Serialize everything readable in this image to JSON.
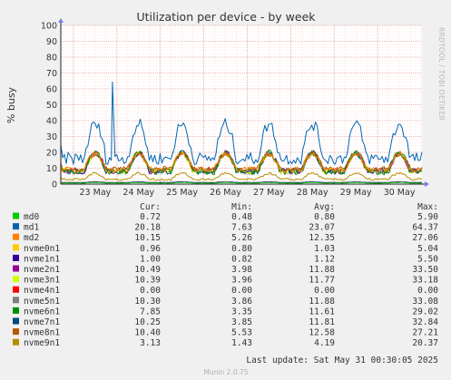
{
  "chart_data": {
    "type": "line",
    "title": "Utilization per device - by week",
    "ylabel": "% busy",
    "xlabel": "",
    "ylim": [
      0,
      100
    ],
    "yticks": [
      0,
      10,
      20,
      30,
      40,
      50,
      60,
      70,
      80,
      90,
      100
    ],
    "xlim": [
      "2025-05-22 17:00",
      "2025-05-31 00:30"
    ],
    "xticks": [
      {
        "label": "23 May",
        "t": "2025-05-23 00:00"
      },
      {
        "label": "24 May",
        "t": "2025-05-24 00:00"
      },
      {
        "label": "25 May",
        "t": "2025-05-25 00:00"
      },
      {
        "label": "26 May",
        "t": "2025-05-26 00:00"
      },
      {
        "label": "27 May",
        "t": "2025-05-27 00:00"
      },
      {
        "label": "28 May",
        "t": "2025-05-28 00:00"
      },
      {
        "label": "29 May",
        "t": "2025-05-29 00:00"
      },
      {
        "label": "30 May",
        "t": "2025-05-30 00:00"
      }
    ],
    "grid": true,
    "legend_headers": {
      "cur": "Cur:",
      "min": "Min:",
      "avg": "Avg:",
      "max": "Max:"
    },
    "series": [
      {
        "name": "md0",
        "color": "#00cc00",
        "cur": "0.72",
        "min": "0.48",
        "avg": "0.80",
        "max": "5.90"
      },
      {
        "name": "md1",
        "color": "#0066b3",
        "cur": "20.18",
        "min": "7.63",
        "avg": "23.07",
        "max": "64.37"
      },
      {
        "name": "md2",
        "color": "#ff8000",
        "cur": "10.15",
        "min": "5.26",
        "avg": "12.35",
        "max": "27.06"
      },
      {
        "name": "nvme0n1",
        "color": "#ffcc00",
        "cur": "0.96",
        "min": "0.80",
        "avg": "1.03",
        "max": "5.04"
      },
      {
        "name": "nvme1n1",
        "color": "#330099",
        "cur": "1.00",
        "min": "0.82",
        "avg": "1.12",
        "max": "5.50"
      },
      {
        "name": "nvme2n1",
        "color": "#990099",
        "cur": "10.49",
        "min": "3.98",
        "avg": "11.88",
        "max": "33.50"
      },
      {
        "name": "nvme3n1",
        "color": "#ccff00",
        "cur": "10.39",
        "min": "3.96",
        "avg": "11.77",
        "max": "33.18"
      },
      {
        "name": "nvme4n1",
        "color": "#ff0000",
        "cur": "0.00",
        "min": "0.00",
        "avg": "0.00",
        "max": "0.00"
      },
      {
        "name": "nvme5n1",
        "color": "#808080",
        "cur": "10.30",
        "min": "3.86",
        "avg": "11.88",
        "max": "33.08"
      },
      {
        "name": "nvme6n1",
        "color": "#008f00",
        "cur": "7.85",
        "min": "3.35",
        "avg": "11.61",
        "max": "29.02"
      },
      {
        "name": "nvme7n1",
        "color": "#00487d",
        "cur": "10.25",
        "min": "3.85",
        "avg": "11.81",
        "max": "32.84"
      },
      {
        "name": "nvme8n1",
        "color": "#b35a00",
        "cur": "10.40",
        "min": "5.53",
        "avg": "12.58",
        "max": "27.21"
      },
      {
        "name": "nvme9n1",
        "color": "#b38f00",
        "cur": "3.13",
        "min": "1.43",
        "avg": "4.19",
        "max": "20.37"
      }
    ]
  },
  "last_update": "Last update: Sat May 31 00:30:05 2025",
  "watermark": "RRDTOOL / TOBI OETIKER",
  "footer": "Munin 2.0.75",
  "colors": {
    "background": "#f0f0f0",
    "plot_bg": "#ffffff",
    "grid_minor": "#ffcccc",
    "grid_major": "#e0a0a0"
  }
}
